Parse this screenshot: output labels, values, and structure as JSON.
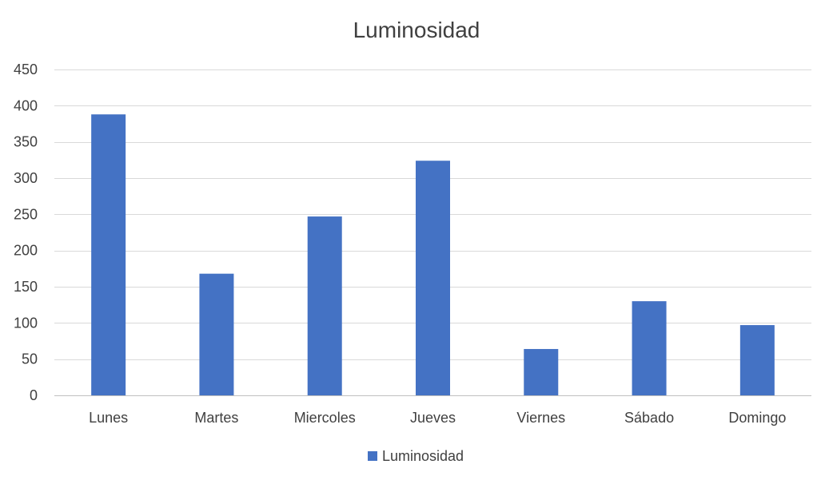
{
  "chart_data": {
    "type": "bar",
    "title": "Luminosidad",
    "xlabel": "",
    "ylabel": "",
    "categories": [
      "Lunes",
      "Martes",
      "Miercoles",
      "Jueves",
      "Viernes",
      "Sábado",
      "Domingo"
    ],
    "series": [
      {
        "name": "Luminosidad",
        "values": [
          388,
          168,
          247,
          324,
          64,
          130,
          97
        ],
        "color": "#4472c4"
      }
    ],
    "ylim": [
      0,
      450
    ],
    "yticks": [
      0,
      50,
      100,
      150,
      200,
      250,
      300,
      350,
      400,
      450
    ],
    "grid": true,
    "legend_position": "bottom"
  }
}
